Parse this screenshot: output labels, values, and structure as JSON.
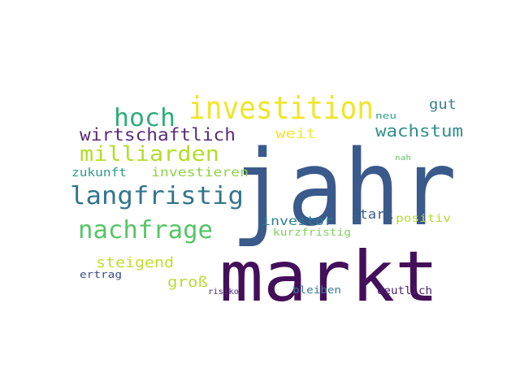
{
  "words": [
    {
      "text": "jahr",
      "color": "#3b5a8c"
    },
    {
      "text": "markt",
      "color": "#440f5a"
    },
    {
      "text": "investition",
      "color": "#f0e52a"
    },
    {
      "text": "langfristig",
      "color": "#33758d"
    },
    {
      "text": "nachfrage",
      "color": "#56c566"
    },
    {
      "text": "hoch",
      "color": "#2fad7a"
    },
    {
      "text": "milliarden",
      "color": "#b4dd2c"
    },
    {
      "text": "wirtschaftlich",
      "color": "#5a2d78"
    },
    {
      "text": "wachstum",
      "color": "#2f8e8c"
    },
    {
      "text": "weit",
      "color": "#f2e534"
    },
    {
      "text": "gut",
      "color": "#3d7f8d"
    },
    {
      "text": "investieren",
      "color": "#8fd24a"
    },
    {
      "text": "zukunft",
      "color": "#2e9c8a"
    },
    {
      "text": "steigend",
      "color": "#c4de2e"
    },
    {
      "text": "groß",
      "color": "#b8dc38"
    },
    {
      "text": "investor",
      "color": "#26808e"
    },
    {
      "text": "stark",
      "color": "#3a5e8c"
    },
    {
      "text": "positiv",
      "color": "#b5de2b"
    },
    {
      "text": "kurzfristig",
      "color": "#7ecf5a"
    },
    {
      "text": "ertrag",
      "color": "#3e4c89"
    },
    {
      "text": "deutlich",
      "color": "#4a1f6e"
    },
    {
      "text": "bleiben",
      "color": "#3a7a8e"
    },
    {
      "text": "risiko",
      "color": "#472c7a"
    },
    {
      "text": "neu",
      "color": "#2aa68a"
    },
    {
      "text": "nah",
      "color": "#60c95e"
    }
  ]
}
